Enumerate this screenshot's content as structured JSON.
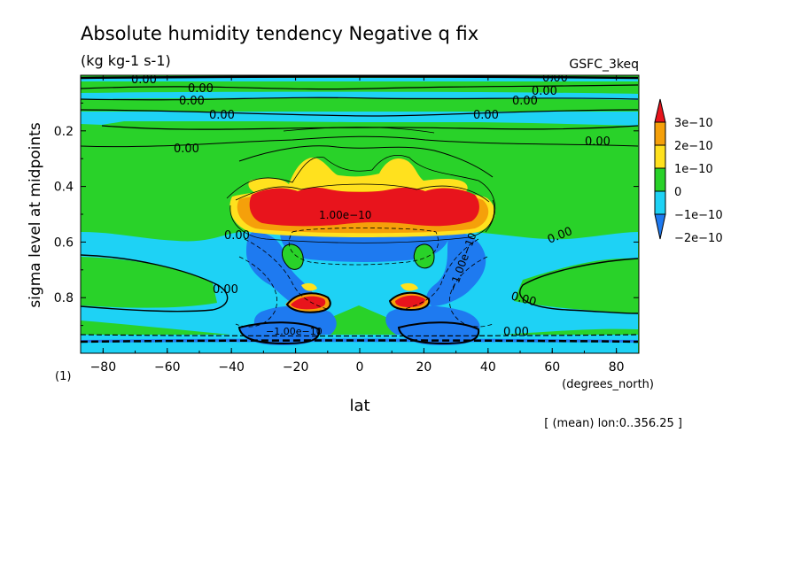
{
  "chart_data": {
    "type": "heatmap",
    "title": "Absolute humidity tendency Negative q fix",
    "units": "(kg kg-1 s-1)",
    "model": "GSFC_3keq",
    "xlabel": "lat",
    "xunits": "(degrees_north)",
    "ylabel": "sigma level at midpoints",
    "yunits": "(1)",
    "footnote": "[ (mean) lon:0..356.25 ]",
    "xlim": [
      -87,
      87
    ],
    "ylim": [
      0.0,
      1.0
    ],
    "y_inverted": true,
    "xticks": [
      -80,
      -60,
      -40,
      -20,
      0,
      20,
      40,
      60,
      80
    ],
    "xtick_labels": [
      "−80",
      "−60",
      "−40",
      "−20",
      "0",
      "20",
      "40",
      "60",
      "80"
    ],
    "yticks": [
      0.2,
      0.4,
      0.6,
      0.8
    ],
    "ytick_labels": [
      "0.2",
      "0.4",
      "0.6",
      "0.8"
    ],
    "levels": [
      -3e-10,
      -2e-10,
      -1e-10,
      0,
      1e-10,
      2e-10,
      3e-10
    ],
    "legend": [
      {
        "label": "3e−10",
        "color": "#e8141c"
      },
      {
        "label": "2e−10",
        "color": "#f5a00a"
      },
      {
        "label": "1e−10",
        "color": "#ffe11e"
      },
      {
        "label": "0",
        "color": "#29d229"
      },
      {
        "label": "−1e−10",
        "color": "#1ed2f5"
      },
      {
        "label": "−2e−10",
        "color": "#1e7af0"
      }
    ],
    "colors": {
      "below_min": "#1e7af0",
      "neg2": "#1e7af0",
      "neg1": "#1ed2f5",
      "zero": "#29d229",
      "pos1": "#ffe11e",
      "pos2": "#f5a00a",
      "pos3": "#e8141c"
    },
    "contour_labels": [
      "0.00",
      "0.00",
      "0.00",
      "0.00",
      "0.00",
      "0.00",
      "0.00",
      "0.00",
      "0.00",
      "0.00",
      "0.00",
      "0.00",
      "0.00",
      "0.00",
      "0.00",
      "1.00e−10",
      "−1.00e−10",
      "−1.00e−10"
    ]
  }
}
